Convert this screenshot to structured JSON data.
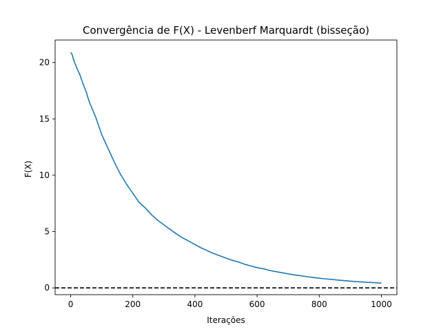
{
  "chart_data": {
    "type": "line",
    "title": "Convergência de F(X) - Levenberf Marquardt (bisseção)",
    "xlabel": "Iterações",
    "ylabel": "F(X)",
    "xlim": [
      -50,
      1050
    ],
    "ylim": [
      -0.6,
      22
    ],
    "xticks": [
      0,
      200,
      400,
      600,
      800,
      1000
    ],
    "yticks": [
      0,
      5,
      10,
      15,
      20
    ],
    "grid": false,
    "legend": "none",
    "reference_line": {
      "y": 0,
      "style": "dashed",
      "color": "#000000"
    },
    "series": [
      {
        "color": "#1f77b4",
        "x": [
          0,
          5,
          10,
          20,
          30,
          40,
          50,
          60,
          80,
          100,
          120,
          140,
          160,
          180,
          200,
          220,
          240,
          260,
          280,
          300,
          320,
          340,
          360,
          380,
          400,
          420,
          440,
          460,
          480,
          500,
          520,
          540,
          560,
          580,
          600,
          620,
          640,
          660,
          680,
          700,
          720,
          740,
          760,
          780,
          800,
          820,
          840,
          860,
          880,
          900,
          920,
          940,
          960,
          980,
          1000
        ],
        "y": [
          20.9,
          20.7,
          20.2,
          19.5,
          18.9,
          18.1,
          17.4,
          16.5,
          15.2,
          13.6,
          12.4,
          11.2,
          10.1,
          9.2,
          8.4,
          7.6,
          7.1,
          6.5,
          6.0,
          5.6,
          5.2,
          4.8,
          4.45,
          4.15,
          3.85,
          3.55,
          3.3,
          3.05,
          2.85,
          2.65,
          2.45,
          2.3,
          2.1,
          1.95,
          1.8,
          1.7,
          1.55,
          1.45,
          1.35,
          1.25,
          1.15,
          1.08,
          1.0,
          0.93,
          0.86,
          0.8,
          0.75,
          0.7,
          0.65,
          0.6,
          0.56,
          0.52,
          0.49,
          0.46,
          0.42
        ]
      }
    ]
  }
}
